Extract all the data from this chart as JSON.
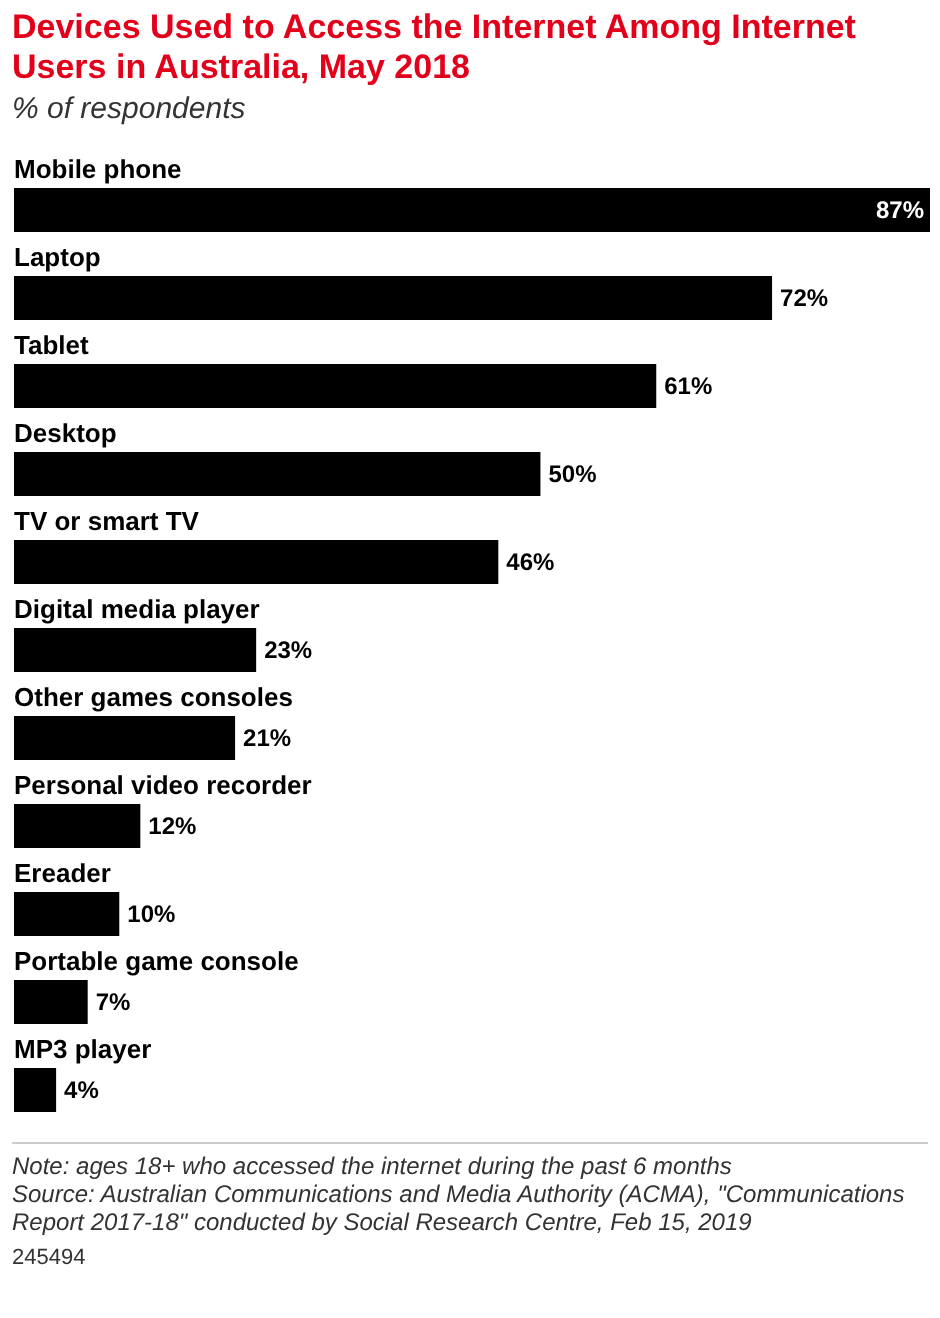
{
  "chart_data": {
    "type": "bar",
    "orientation": "horizontal",
    "title": "Devices Used to Access the Internet Among Internet Users in Australia, May 2018",
    "subtitle": "% of respondents",
    "categories": [
      "Mobile phone",
      "Laptop",
      "Tablet",
      "Desktop",
      "TV or smart TV",
      "Digital media player",
      "Other games consoles",
      "Personal video recorder",
      "Ereader",
      "Portable game console",
      "MP3 player"
    ],
    "values": [
      87,
      72,
      61,
      50,
      46,
      23,
      21,
      12,
      10,
      7,
      4
    ],
    "value_labels": [
      "87%",
      "72%",
      "61%",
      "50%",
      "46%",
      "23%",
      "21%",
      "12%",
      "10%",
      "7%",
      "4%"
    ],
    "color": "#000000",
    "tick_labels": false,
    "annotations": [
      "Note: ages 18+ who accessed the internet during the past 6 months",
      "Source: Australian Communications and Media Authority (ACMA), \"Communications Report 2017-18\" conducted by Social Research Centre, Feb 15, 2019",
      "245494"
    ]
  }
}
